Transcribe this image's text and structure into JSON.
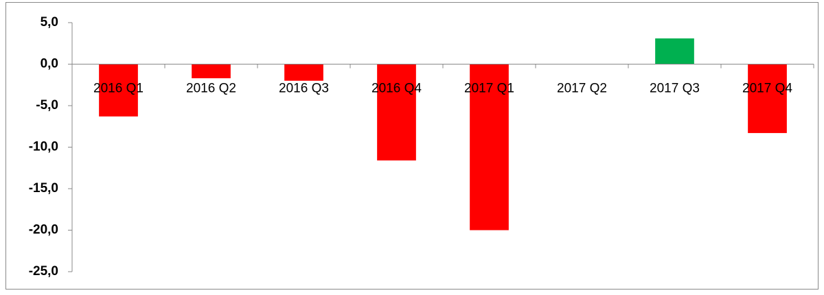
{
  "chart_data": {
    "type": "bar",
    "categories": [
      "2016 Q1",
      "2016 Q2",
      "2016 Q3",
      "2016 Q4",
      "2017 Q1",
      "2017 Q2",
      "2017 Q3",
      "2017 Q4"
    ],
    "values": [
      -6.3,
      -1.7,
      -2.0,
      -11.6,
      -20.0,
      0,
      3.1,
      -8.3
    ],
    "colors": [
      "#ff0000",
      "#ff0000",
      "#ff0000",
      "#ff0000",
      "#ff0000",
      "#ff0000",
      "#00b050",
      "#ff0000"
    ],
    "ylim": [
      -25,
      5
    ],
    "yticks": [
      {
        "value": 5,
        "label": "5,0"
      },
      {
        "value": 0,
        "label": "0,0"
      },
      {
        "value": -5,
        "label": "-5,0"
      },
      {
        "value": -10,
        "label": "-10,0"
      },
      {
        "value": -15,
        "label": "-15,0"
      },
      {
        "value": -20,
        "label": "-20,0"
      },
      {
        "value": -25,
        "label": "-25,0"
      }
    ],
    "grid": false
  }
}
